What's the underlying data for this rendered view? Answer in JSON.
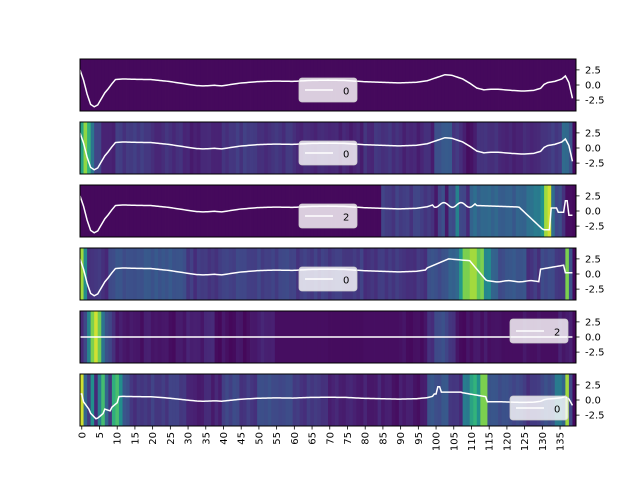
{
  "chart_data": {
    "type": "heatmap",
    "title": "",
    "xlabel": "",
    "ylabel": "",
    "x_range": [
      0,
      139
    ],
    "x_tick_labels": [
      "0",
      "5",
      "10",
      "15",
      "20",
      "25",
      "30",
      "35",
      "40",
      "45",
      "50",
      "55",
      "60",
      "65",
      "70",
      "75",
      "80",
      "85",
      "90",
      "95",
      "100",
      "105",
      "110",
      "115",
      "120",
      "125",
      "130",
      "135"
    ],
    "y_tick_labels": [
      "2.5",
      "0.0",
      "-2.5"
    ],
    "y_range": [
      -4.3,
      4.3
    ],
    "colormap": "viridis",
    "line_color": "#ffffff",
    "legend_placement": [
      "bottom-center",
      "bottom-center",
      "bottom-center",
      "bottom-center",
      "right",
      "bottom-right"
    ],
    "signal_keypoints": [
      [
        0,
        2.5
      ],
      [
        1,
        0.8
      ],
      [
        2,
        -1.5
      ],
      [
        3,
        -3.2
      ],
      [
        4,
        -3.6
      ],
      [
        5,
        -3.3
      ],
      [
        6,
        -2.3
      ],
      [
        7,
        -1.3
      ],
      [
        8,
        -0.6
      ],
      [
        9,
        0.2
      ],
      [
        10,
        0.9
      ],
      [
        12,
        1.0
      ],
      [
        15,
        0.95
      ],
      [
        20,
        0.9
      ],
      [
        25,
        0.6
      ],
      [
        30,
        0.15
      ],
      [
        33,
        -0.1
      ],
      [
        35,
        -0.15
      ],
      [
        38,
        -0.05
      ],
      [
        40,
        -0.15
      ],
      [
        45,
        0.3
      ],
      [
        50,
        0.55
      ],
      [
        55,
        0.65
      ],
      [
        60,
        0.6
      ],
      [
        65,
        0.75
      ],
      [
        70,
        0.8
      ],
      [
        75,
        0.75
      ],
      [
        80,
        0.55
      ],
      [
        85,
        0.45
      ],
      [
        90,
        0.35
      ],
      [
        95,
        0.45
      ],
      [
        98,
        0.7
      ],
      [
        100,
        1.1
      ],
      [
        103,
        1.7
      ],
      [
        105,
        1.6
      ],
      [
        108,
        1.0
      ],
      [
        110,
        0.3
      ],
      [
        112,
        -0.5
      ],
      [
        114,
        -0.8
      ],
      [
        116,
        -0.7
      ],
      [
        118,
        -0.7
      ],
      [
        122,
        -0.9
      ],
      [
        125,
        -1.0
      ],
      [
        128,
        -0.9
      ],
      [
        130,
        -0.55
      ],
      [
        131,
        0.1
      ],
      [
        132,
        0.4
      ],
      [
        134,
        0.6
      ],
      [
        136,
        1.0
      ],
      [
        137,
        1.5
      ],
      [
        138,
        0.4
      ],
      [
        139,
        -2.2
      ]
    ],
    "panels": [
      {
        "legend": "0",
        "heat_segments": [
          [
            0,
            139,
            0.03
          ]
        ],
        "heat_overrides": []
      },
      {
        "legend": "0",
        "heat_segments": [
          [
            0,
            1,
            0.72
          ],
          [
            1,
            2,
            0.88
          ],
          [
            2,
            3,
            0.75
          ],
          [
            3,
            4,
            0.45
          ],
          [
            4,
            6,
            0.25
          ],
          [
            6,
            10,
            0.12
          ],
          [
            10,
            20,
            0.2
          ],
          [
            20,
            30,
            0.17
          ],
          [
            30,
            40,
            0.13
          ],
          [
            40,
            50,
            0.2
          ],
          [
            50,
            60,
            0.18
          ],
          [
            60,
            70,
            0.14
          ],
          [
            70,
            80,
            0.12
          ],
          [
            80,
            90,
            0.17
          ],
          [
            90,
            100,
            0.14
          ],
          [
            100,
            105,
            0.32
          ],
          [
            105,
            108,
            0.18
          ],
          [
            108,
            112,
            0.08
          ],
          [
            112,
            118,
            0.2
          ],
          [
            118,
            125,
            0.12
          ],
          [
            125,
            130,
            0.16
          ],
          [
            130,
            136,
            0.22
          ],
          [
            136,
            138,
            0.45
          ],
          [
            138,
            139,
            0.3
          ]
        ],
        "heat_overrides": []
      },
      {
        "legend": "2",
        "heat_segments": [
          [
            0,
            85,
            0.03
          ],
          [
            85,
            100,
            0.22
          ],
          [
            100,
            101,
            0.1
          ],
          [
            101,
            103,
            0.28
          ],
          [
            103,
            104,
            0.1
          ],
          [
            104,
            106,
            0.28
          ],
          [
            106,
            107,
            0.55
          ],
          [
            107,
            109,
            0.28
          ],
          [
            109,
            110,
            0.15
          ],
          [
            110,
            118,
            0.42
          ],
          [
            118,
            126,
            0.38
          ],
          [
            126,
            128,
            0.45
          ],
          [
            128,
            130,
            0.5
          ],
          [
            130,
            131,
            0.6
          ],
          [
            131,
            132,
            0.9
          ],
          [
            132,
            133,
            0.95
          ],
          [
            133,
            134,
            0.45
          ],
          [
            134,
            136,
            0.28
          ],
          [
            136,
            137,
            0.18
          ],
          [
            137,
            139,
            0.05
          ]
        ],
        "heat_overrides": []
      },
      {
        "legend": "0",
        "heat_segments": [
          [
            0,
            1,
            0.9
          ],
          [
            1,
            2,
            0.6
          ],
          [
            2,
            5,
            0.22
          ],
          [
            5,
            8,
            0.18
          ],
          [
            8,
            10,
            0.28
          ],
          [
            10,
            30,
            0.32
          ],
          [
            30,
            40,
            0.2
          ],
          [
            40,
            60,
            0.25
          ],
          [
            60,
            80,
            0.22
          ],
          [
            80,
            98,
            0.2
          ],
          [
            98,
            104,
            0.3
          ],
          [
            104,
            107,
            0.42
          ],
          [
            107,
            108,
            0.65
          ],
          [
            108,
            110,
            0.85
          ],
          [
            110,
            112,
            0.9
          ],
          [
            112,
            114,
            0.82
          ],
          [
            114,
            116,
            0.6
          ],
          [
            116,
            118,
            0.4
          ],
          [
            118,
            122,
            0.3
          ],
          [
            122,
            126,
            0.35
          ],
          [
            126,
            130,
            0.2
          ],
          [
            130,
            134,
            0.28
          ],
          [
            134,
            137,
            0.18
          ],
          [
            137,
            138,
            0.85
          ],
          [
            138,
            139,
            0.3
          ]
        ],
        "heat_overrides": []
      },
      {
        "legend": "2",
        "heat_segments": [
          [
            0,
            1,
            0.18
          ],
          [
            1,
            2,
            0.3
          ],
          [
            2,
            3,
            0.55
          ],
          [
            3,
            4,
            0.85
          ],
          [
            4,
            5,
            0.95
          ],
          [
            5,
            6,
            0.82
          ],
          [
            6,
            7,
            0.45
          ],
          [
            7,
            8,
            0.3
          ],
          [
            8,
            9,
            0.22
          ],
          [
            9,
            10,
            0.15
          ],
          [
            10,
            20,
            0.08
          ],
          [
            20,
            30,
            0.06
          ],
          [
            30,
            35,
            0.1
          ],
          [
            35,
            38,
            0.12
          ],
          [
            38,
            50,
            0.06
          ],
          [
            50,
            55,
            0.12
          ],
          [
            55,
            60,
            0.05
          ],
          [
            60,
            70,
            0.05
          ],
          [
            70,
            80,
            0.04
          ],
          [
            80,
            90,
            0.05
          ],
          [
            90,
            98,
            0.06
          ],
          [
            98,
            100,
            0.15
          ],
          [
            100,
            104,
            0.28
          ],
          [
            104,
            106,
            0.2
          ],
          [
            106,
            110,
            0.06
          ],
          [
            110,
            120,
            0.08
          ],
          [
            120,
            125,
            0.05
          ],
          [
            125,
            130,
            0.07
          ],
          [
            130,
            135,
            0.05
          ],
          [
            135,
            139,
            0.1
          ]
        ],
        "heat_overrides": []
      },
      {
        "legend": "0",
        "heat_segments": [
          [
            0,
            1,
            0.95
          ],
          [
            1,
            2,
            0.45
          ],
          [
            2,
            3,
            0.25
          ],
          [
            3,
            4,
            0.6
          ],
          [
            4,
            5,
            0.18
          ],
          [
            5,
            6,
            0.55
          ],
          [
            6,
            7,
            0.8
          ],
          [
            7,
            8,
            0.4
          ],
          [
            8,
            9,
            0.2
          ],
          [
            9,
            10,
            0.7
          ],
          [
            10,
            11,
            0.75
          ],
          [
            11,
            12,
            0.6
          ],
          [
            12,
            14,
            0.3
          ],
          [
            14,
            20,
            0.18
          ],
          [
            20,
            30,
            0.22
          ],
          [
            30,
            40,
            0.12
          ],
          [
            40,
            45,
            0.25
          ],
          [
            45,
            50,
            0.2
          ],
          [
            50,
            60,
            0.28
          ],
          [
            60,
            70,
            0.2
          ],
          [
            70,
            85,
            0.12
          ],
          [
            85,
            98,
            0.08
          ],
          [
            98,
            104,
            0.32
          ],
          [
            104,
            108,
            0.18
          ],
          [
            108,
            110,
            0.5
          ],
          [
            110,
            112,
            0.72
          ],
          [
            112,
            113,
            0.6
          ],
          [
            113,
            115,
            0.85
          ],
          [
            115,
            118,
            0.35
          ],
          [
            118,
            125,
            0.28
          ],
          [
            125,
            130,
            0.2
          ],
          [
            130,
            134,
            0.3
          ],
          [
            134,
            136,
            0.55
          ],
          [
            136,
            137,
            0.4
          ],
          [
            137,
            138,
            0.9
          ],
          [
            138,
            139,
            0.3
          ]
        ],
        "heat_overrides": []
      }
    ]
  }
}
